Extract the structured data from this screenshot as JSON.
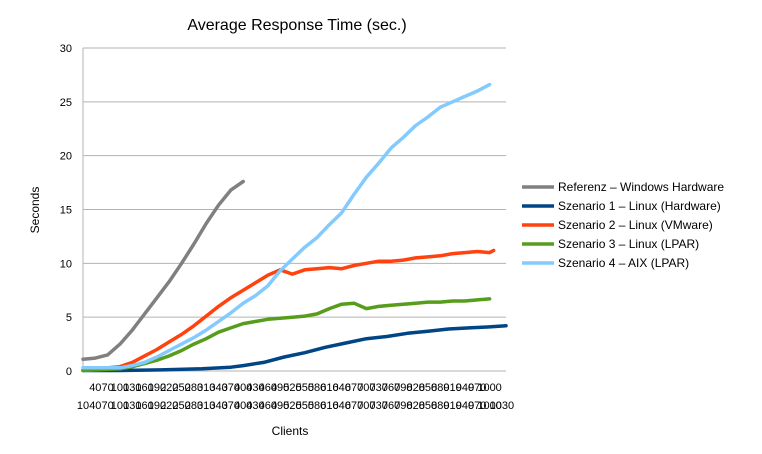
{
  "chart_data": {
    "type": "line",
    "title": "Average Response Time (sec.)",
    "xlabel": "Clients",
    "ylabel": "Seconds",
    "ylim": [
      0,
      30
    ],
    "yticks": [
      0,
      5,
      10,
      15,
      20,
      25,
      30
    ],
    "xlim": [
      10,
      1040
    ],
    "xtick_labels_upper": [
      "40",
      "70",
      "100",
      "130",
      "160",
      "190",
      "220",
      "250",
      "280",
      "310",
      "340",
      "370",
      "400",
      "430",
      "460",
      "490",
      "520",
      "550",
      "580",
      "610",
      "640",
      "670",
      "700",
      "730",
      "760",
      "790",
      "820",
      "850",
      "880",
      "910",
      "940",
      "970",
      "1000"
    ],
    "xtick_labels_lower": [
      "10",
      "40",
      "70",
      "100",
      "130",
      "160",
      "190",
      "220",
      "250",
      "280",
      "310",
      "340",
      "370",
      "400",
      "430",
      "460",
      "490",
      "520",
      "550",
      "580",
      "610",
      "640",
      "670",
      "700",
      "730",
      "760",
      "790",
      "820",
      "850",
      "880",
      "910",
      "940",
      "970",
      "1000",
      "1030"
    ],
    "grid": "horizontal",
    "legend_position": "right",
    "series": [
      {
        "name": "Referenz – Windows Hardware",
        "color": "#808080",
        "x": [
          10,
          40,
          70,
          100,
          130,
          160,
          190,
          220,
          250,
          280,
          310,
          340,
          370,
          400
        ],
        "y": [
          1.1,
          1.2,
          1.5,
          2.5,
          3.8,
          5.3,
          6.8,
          8.3,
          10.0,
          11.8,
          13.7,
          15.4,
          16.8,
          17.6
        ]
      },
      {
        "name": "Szenario 1 – Linux (Hardware)",
        "color": "#004586",
        "x": [
          10,
          100,
          200,
          300,
          370,
          400,
          450,
          500,
          550,
          600,
          650,
          700,
          750,
          800,
          850,
          900,
          950,
          1000,
          1040
        ],
        "y": [
          0.05,
          0.05,
          0.1,
          0.2,
          0.35,
          0.5,
          0.8,
          1.3,
          1.7,
          2.2,
          2.6,
          3.0,
          3.2,
          3.5,
          3.7,
          3.9,
          4.0,
          4.1,
          4.2
        ]
      },
      {
        "name": "Szenario 2 – Linux (VMware)",
        "color": "#ff420e",
        "x": [
          10,
          100,
          130,
          160,
          190,
          220,
          250,
          280,
          310,
          340,
          370,
          400,
          430,
          460,
          490,
          520,
          550,
          580,
          610,
          640,
          670,
          700,
          730,
          760,
          790,
          820,
          850,
          880,
          910,
          940,
          970,
          1000,
          1010
        ],
        "y": [
          0.1,
          0.4,
          0.8,
          1.4,
          2.0,
          2.7,
          3.4,
          4.2,
          5.1,
          6.0,
          6.8,
          7.5,
          8.2,
          8.9,
          9.4,
          9.0,
          9.4,
          9.5,
          9.6,
          9.5,
          9.8,
          10.0,
          10.2,
          10.2,
          10.3,
          10.5,
          10.6,
          10.7,
          10.9,
          11.0,
          11.1,
          11.0,
          11.2
        ]
      },
      {
        "name": "Szenario 3 – Linux (LPAR)",
        "color": "#579d1c",
        "x": [
          10,
          100,
          130,
          160,
          190,
          220,
          250,
          280,
          310,
          340,
          370,
          400,
          430,
          460,
          490,
          520,
          550,
          580,
          610,
          640,
          670,
          700,
          730,
          760,
          790,
          820,
          850,
          880,
          910,
          940,
          970,
          1000
        ],
        "y": [
          0.05,
          0.2,
          0.4,
          0.7,
          1.0,
          1.4,
          1.9,
          2.5,
          3.0,
          3.6,
          4.0,
          4.4,
          4.6,
          4.8,
          4.9,
          5.0,
          5.1,
          5.3,
          5.8,
          6.2,
          6.3,
          5.8,
          6.0,
          6.1,
          6.2,
          6.3,
          6.4,
          6.4,
          6.5,
          6.5,
          6.6,
          6.7
        ]
      },
      {
        "name": "Szenario 4 – AIX (LPAR)",
        "color": "#83caff",
        "x": [
          10,
          100,
          130,
          160,
          190,
          220,
          250,
          280,
          310,
          340,
          370,
          400,
          430,
          460,
          490,
          520,
          550,
          580,
          610,
          640,
          670,
          700,
          730,
          760,
          790,
          820,
          850,
          880,
          910,
          940,
          970,
          1000
        ],
        "y": [
          0.3,
          0.3,
          0.5,
          0.8,
          1.3,
          1.9,
          2.5,
          3.1,
          3.8,
          4.6,
          5.4,
          6.3,
          7.0,
          7.9,
          9.3,
          10.4,
          11.5,
          12.4,
          13.6,
          14.7,
          16.4,
          18.0,
          19.3,
          20.7,
          21.7,
          22.8,
          23.6,
          24.5,
          25.0,
          25.5,
          26.0,
          26.6
        ]
      }
    ]
  }
}
